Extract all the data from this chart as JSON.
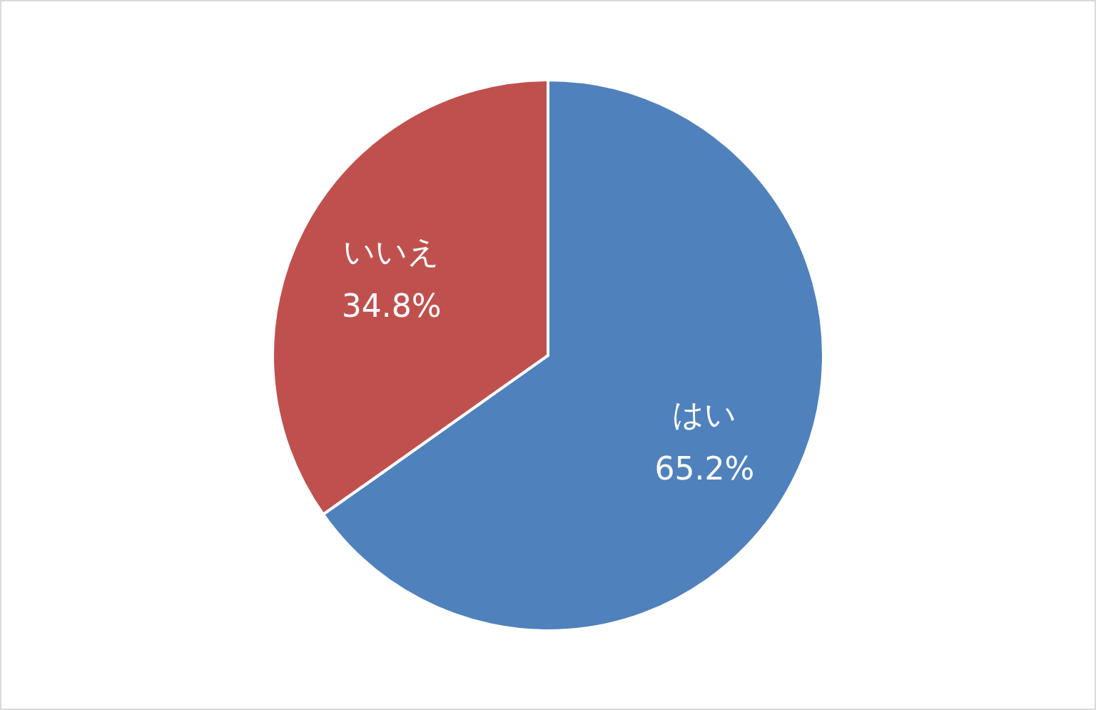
{
  "chart_data": {
    "type": "pie",
    "categories": [
      "はい",
      "いいえ"
    ],
    "values": [
      65.2,
      34.8
    ],
    "colors": [
      "#4f81bd",
      "#c0504d"
    ],
    "value_labels": [
      "65.2%",
      "34.8%"
    ]
  }
}
